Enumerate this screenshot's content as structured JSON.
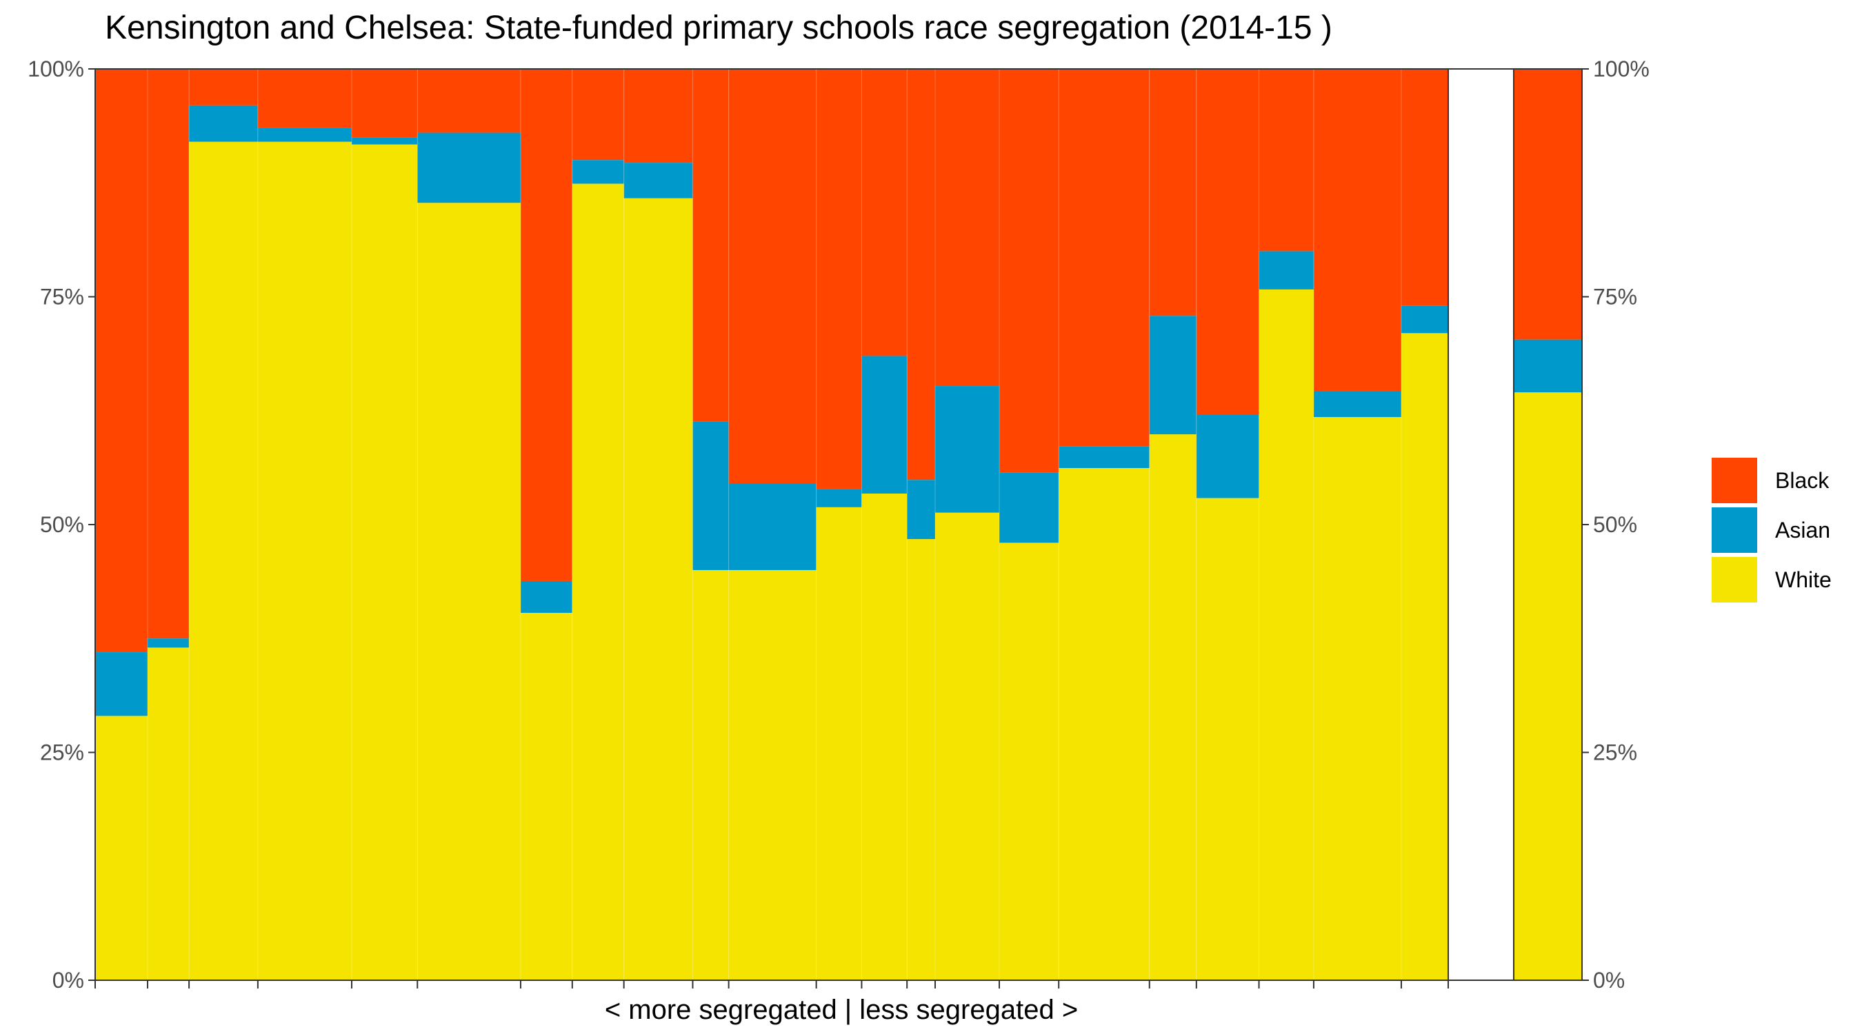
{
  "chart_data": {
    "type": "bar",
    "subtype": "stacked-variable-width",
    "title": "Kensington and Chelsea: State-funded primary schools race segregation (2014-15 )",
    "xlabel": "< more segregated | less segregated >",
    "ylabel": "",
    "ylim": [
      0,
      1
    ],
    "y_ticks": [
      {
        "value": 0,
        "label": "0%"
      },
      {
        "value": 0.25,
        "label": "25%"
      },
      {
        "value": 0.5,
        "label": "50%"
      },
      {
        "value": 0.75,
        "label": "75%"
      },
      {
        "value": 1,
        "label": "100%"
      }
    ],
    "legend": {
      "position": "right",
      "entries": [
        {
          "name": "Black",
          "color": "#FF4500"
        },
        {
          "name": "Asian",
          "color": "#0099CC"
        },
        {
          "name": "White",
          "color": "#F5E400"
        }
      ]
    },
    "colors": {
      "black": "#FF4500",
      "asian": "#0099CC",
      "white": "#F5E400"
    },
    "grid": false,
    "schools": [
      {
        "width": 0.0335,
        "white": 0.29,
        "asian": 0.07
      },
      {
        "width": 0.0265,
        "white": 0.365,
        "asian": 0.01
      },
      {
        "width": 0.044,
        "white": 0.92,
        "asian": 0.04
      },
      {
        "width": 0.06,
        "white": 0.92,
        "asian": 0.015
      },
      {
        "width": 0.042,
        "white": 0.917,
        "asian": 0.008
      },
      {
        "width": 0.066,
        "white": 0.853,
        "asian": 0.077
      },
      {
        "width": 0.033,
        "white": 0.403,
        "asian": 0.035
      },
      {
        "width": 0.033,
        "white": 0.874,
        "asian": 0.026
      },
      {
        "width": 0.044,
        "white": 0.858,
        "asian": 0.039
      },
      {
        "width": 0.023,
        "white": 0.45,
        "asian": 0.163
      },
      {
        "width": 0.056,
        "white": 0.45,
        "asian": 0.095
      },
      {
        "width": 0.029,
        "white": 0.519,
        "asian": 0.02
      },
      {
        "width": 0.029,
        "white": 0.534,
        "asian": 0.151
      },
      {
        "width": 0.018,
        "white": 0.484,
        "asian": 0.065
      },
      {
        "width": 0.041,
        "white": 0.513,
        "asian": 0.139
      },
      {
        "width": 0.038,
        "white": 0.48,
        "asian": 0.077
      },
      {
        "width": 0.058,
        "white": 0.562,
        "asian": 0.024
      },
      {
        "width": 0.03,
        "white": 0.599,
        "asian": 0.13
      },
      {
        "width": 0.04,
        "white": 0.529,
        "asian": 0.092
      },
      {
        "width": 0.035,
        "white": 0.758,
        "asian": 0.042
      },
      {
        "width": 0.056,
        "white": 0.618,
        "asian": 0.028
      },
      {
        "width": 0.03,
        "white": 0.71,
        "asian": 0.03
      }
    ],
    "summary": {
      "white": 0.645,
      "asian": 0.058
    }
  }
}
